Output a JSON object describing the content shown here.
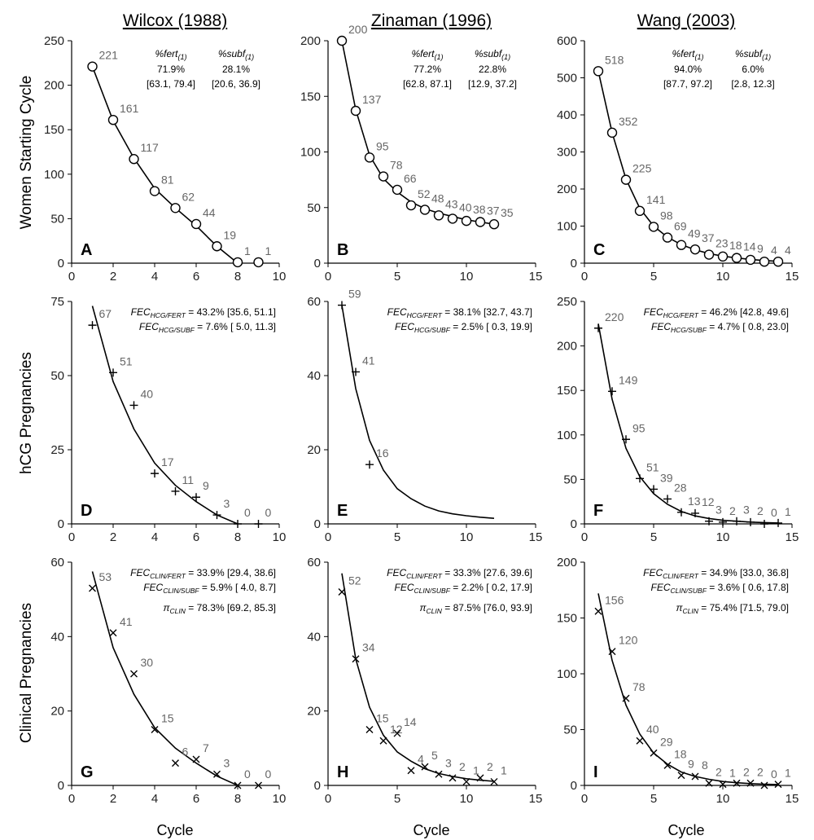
{
  "column_titles": [
    "Wilcox (1988)",
    "Zinaman (1996)",
    "Wang (2003)"
  ],
  "row_labels": [
    "Women Starting Cycle",
    "hCG Pregnancies",
    "Clinical Pregnancies"
  ],
  "x_axis_label": "Cycle",
  "chart_data": [
    {
      "id": "A",
      "type": "scatter",
      "marker": "circle",
      "row": 0,
      "col": 0,
      "xlim": [
        0,
        10
      ],
      "ylim": [
        0,
        250
      ],
      "xticks": [
        0,
        2,
        4,
        6,
        8,
        10
      ],
      "yticks": [
        0,
        50,
        100,
        150,
        200,
        250
      ],
      "x": [
        1,
        2,
        3,
        4,
        5,
        6,
        7,
        8,
        9
      ],
      "y": [
        221,
        161,
        117,
        81,
        62,
        44,
        19,
        1,
        1
      ],
      "labels": [
        "221",
        "161",
        "117",
        "81",
        "62",
        "44",
        "19",
        "1",
        "1"
      ],
      "fit": {
        "x": [
          1,
          2,
          3,
          4,
          5,
          6,
          7,
          8
        ],
        "y": [
          221,
          160,
          118,
          84,
          62,
          42,
          19,
          0
        ]
      },
      "stats": [
        [
          "%fert(1)",
          "%subf(1)"
        ],
        [
          "71.9%",
          "28.1%"
        ],
        [
          "[63.1, 79.4]",
          "[20.6, 36.9]"
        ]
      ]
    },
    {
      "id": "B",
      "type": "scatter",
      "marker": "circle",
      "row": 0,
      "col": 1,
      "xlim": [
        0,
        15
      ],
      "ylim": [
        0,
        200
      ],
      "xticks": [
        0,
        5,
        10,
        15
      ],
      "yticks": [
        0,
        50,
        100,
        150,
        200
      ],
      "x": [
        1,
        2,
        3,
        4,
        5,
        6,
        7,
        8,
        9,
        10,
        11,
        12
      ],
      "y": [
        200,
        137,
        95,
        78,
        66,
        52,
        48,
        43,
        40,
        38,
        37,
        35
      ],
      "labels": [
        "200",
        "137",
        "95",
        "78",
        "66",
        "52",
        "48",
        "43",
        "40",
        "38",
        "37",
        "35"
      ],
      "fit": {
        "x": [
          1,
          2,
          3,
          4,
          5,
          6,
          7,
          8,
          9,
          10,
          11,
          12
        ],
        "y": [
          200,
          138,
          97,
          76,
          64,
          55,
          49,
          45,
          42,
          39,
          37,
          35
        ]
      },
      "stats": [
        [
          "%fert(1)",
          "%subf(1)"
        ],
        [
          "77.2%",
          "22.8%"
        ],
        [
          "[62.8, 87.1]",
          "[12.9, 37.2]"
        ]
      ]
    },
    {
      "id": "C",
      "type": "scatter",
      "marker": "circle",
      "row": 0,
      "col": 2,
      "xlim": [
        0,
        15
      ],
      "ylim": [
        0,
        600
      ],
      "xticks": [
        0,
        5,
        10,
        15
      ],
      "yticks": [
        0,
        100,
        200,
        300,
        400,
        500,
        600
      ],
      "x": [
        1,
        2,
        3,
        4,
        5,
        6,
        7,
        8,
        9,
        10,
        11,
        12,
        13,
        14
      ],
      "y": [
        518,
        352,
        225,
        141,
        98,
        69,
        49,
        37,
        23,
        18,
        14,
        9,
        4,
        4
      ],
      "labels": [
        "518",
        "352",
        "225",
        "141",
        "98",
        "69",
        "49",
        "37",
        "23",
        "18",
        "14",
        "9",
        "4",
        "4"
      ],
      "fit": {
        "x": [
          1,
          2,
          3,
          4,
          5,
          6,
          7,
          8,
          9,
          10,
          11,
          12,
          13,
          14
        ],
        "y": [
          518,
          352,
          227,
          148,
          100,
          70,
          50,
          36,
          26,
          19,
          14,
          10,
          7,
          5
        ]
      },
      "stats": [
        [
          "%fert(1)",
          "%subf(1)"
        ],
        [
          "94.0%",
          "6.0%"
        ],
        [
          "[87.7, 97.2]",
          "[2.8, 12.3]"
        ]
      ]
    },
    {
      "id": "D",
      "type": "scatter",
      "marker": "plus",
      "row": 1,
      "col": 0,
      "xlim": [
        0,
        10
      ],
      "ylim": [
        0,
        75
      ],
      "xticks": [
        0,
        2,
        4,
        6,
        8,
        10
      ],
      "yticks": [
        0,
        25,
        50,
        75
      ],
      "x": [
        1,
        2,
        3,
        4,
        5,
        6,
        7,
        8,
        9
      ],
      "y": [
        67,
        51,
        40,
        17,
        11,
        9,
        3,
        0,
        0
      ],
      "labels": [
        "67",
        "51",
        "40",
        "17",
        "11",
        "9",
        "3",
        "0",
        "0"
      ],
      "fit": {
        "x": [
          1,
          2,
          3,
          4,
          5,
          6,
          7,
          8
        ],
        "y": [
          73.5,
          48,
          32,
          20.5,
          13,
          7.5,
          3,
          0
        ]
      },
      "stats": [
        [
          "FEC",
          "HCG/FERT",
          " = 43.2% [35.6, 51.1]"
        ],
        [
          "FEC",
          "HCG/SUBF",
          " =  7.6% [ 5.0, 11.3]"
        ]
      ]
    },
    {
      "id": "E",
      "type": "scatter",
      "marker": "plus",
      "row": 1,
      "col": 1,
      "xlim": [
        0,
        15
      ],
      "ylim": [
        0,
        60
      ],
      "xticks": [
        0,
        5,
        10,
        15
      ],
      "yticks": [
        0,
        20,
        40,
        60
      ],
      "x": [
        1,
        2,
        3
      ],
      "y": [
        59,
        41,
        16
      ],
      "labels": [
        "59",
        "41",
        "16"
      ],
      "fit": {
        "x": [
          1,
          2,
          3,
          4,
          5,
          6,
          7,
          8,
          9,
          10,
          11,
          12
        ],
        "y": [
          59,
          36.5,
          22.5,
          14.5,
          9.5,
          6.8,
          4.8,
          3.5,
          2.7,
          2.2,
          1.8,
          1.5
        ]
      },
      "stats": [
        [
          "FEC",
          "HCG/FERT",
          " = 38.1% [32.7, 43.7]"
        ],
        [
          "FEC",
          "HCG/SUBF",
          " =  2.5% [ 0.3, 19.9]"
        ]
      ]
    },
    {
      "id": "F",
      "type": "scatter",
      "marker": "plus",
      "row": 1,
      "col": 2,
      "xlim": [
        0,
        15
      ],
      "ylim": [
        0,
        250
      ],
      "xticks": [
        0,
        5,
        10,
        15
      ],
      "yticks": [
        0,
        50,
        100,
        150,
        200,
        250
      ],
      "x": [
        1,
        2,
        3,
        4,
        5,
        6,
        7,
        8,
        9,
        10,
        11,
        12,
        13,
        14
      ],
      "y": [
        220,
        149,
        95,
        51,
        39,
        28,
        13,
        12,
        3,
        2,
        3,
        2,
        0,
        1
      ],
      "labels": [
        "220",
        "149",
        "95",
        "51",
        "39",
        "28",
        "13",
        "12",
        "3",
        "2",
        "3",
        "2",
        "0",
        "1"
      ],
      "fit": {
        "x": [
          1,
          2,
          3,
          4,
          5,
          6,
          7,
          8,
          9,
          10,
          11,
          12,
          13,
          14
        ],
        "y": [
          225,
          140,
          85,
          53,
          34,
          22,
          14,
          9,
          6,
          4,
          3,
          2,
          1.5,
          1
        ]
      },
      "stats": [
        [
          "FEC",
          "HCG/FERT",
          " = 46.2% [42.8, 49.6]"
        ],
        [
          "FEC",
          "HCG/SUBF",
          " =  4.7% [ 0.8, 23.0]"
        ]
      ]
    },
    {
      "id": "G",
      "type": "scatter",
      "marker": "cross",
      "row": 2,
      "col": 0,
      "xlim": [
        0,
        10
      ],
      "ylim": [
        0,
        60
      ],
      "xticks": [
        0,
        2,
        4,
        6,
        8,
        10
      ],
      "yticks": [
        0,
        20,
        40,
        60
      ],
      "x": [
        1,
        2,
        3,
        4,
        5,
        6,
        7,
        8,
        9
      ],
      "y": [
        53,
        41,
        30,
        15,
        6,
        7,
        3,
        0,
        0
      ],
      "labels": [
        "53",
        "41",
        "30",
        "15",
        "6",
        "7",
        "3",
        "0",
        "0"
      ],
      "fit": {
        "x": [
          1,
          2,
          3,
          4,
          5,
          6,
          7,
          8
        ],
        "y": [
          57.5,
          37,
          24.5,
          15.5,
          10,
          6,
          2.5,
          0
        ]
      },
      "stats": [
        [
          "FEC",
          "CLIN/FERT",
          " = 33.9% [29.4, 38.6]"
        ],
        [
          "FEC",
          "CLIN/SUBF",
          " =  5.9% [ 4.0,  8.7]"
        ],
        [
          "π",
          "CLIN",
          " = 78.3% [69.2, 85.3]"
        ]
      ]
    },
    {
      "id": "H",
      "type": "scatter",
      "marker": "cross",
      "row": 2,
      "col": 1,
      "xlim": [
        0,
        15
      ],
      "ylim": [
        0,
        60
      ],
      "xticks": [
        0,
        5,
        10,
        15
      ],
      "yticks": [
        0,
        20,
        40,
        60
      ],
      "x": [
        1,
        2,
        3,
        4,
        5,
        6,
        7,
        8,
        9,
        10,
        11,
        12
      ],
      "y": [
        52,
        34,
        15,
        12,
        14,
        4,
        5,
        3,
        2,
        1,
        2,
        1
      ],
      "labels": [
        "52",
        "34",
        "15",
        "12",
        "14",
        "4",
        "5",
        "3",
        "2",
        "1",
        "2",
        "1"
      ],
      "fit": {
        "x": [
          1,
          2,
          3,
          4,
          5,
          6,
          7,
          8,
          9,
          10,
          11,
          12
        ],
        "y": [
          57,
          34,
          21,
          13.5,
          9,
          6.5,
          4.5,
          3.2,
          2.4,
          1.8,
          1.4,
          1.1
        ]
      },
      "stats": [
        [
          "FEC",
          "CLIN/FERT",
          " = 33.3% [27.6, 39.6]"
        ],
        [
          "FEC",
          "CLIN/SUBF",
          " =  2.2% [ 0.2, 17.9]"
        ],
        [
          "π",
          "CLIN",
          " = 87.5% [76.0, 93.9]"
        ]
      ]
    },
    {
      "id": "I",
      "type": "scatter",
      "marker": "cross",
      "row": 2,
      "col": 2,
      "xlim": [
        0,
        15
      ],
      "ylim": [
        0,
        200
      ],
      "xticks": [
        0,
        5,
        10,
        15
      ],
      "yticks": [
        0,
        50,
        100,
        150,
        200
      ],
      "x": [
        1,
        2,
        3,
        4,
        5,
        6,
        7,
        8,
        9,
        10,
        11,
        12,
        13,
        14
      ],
      "y": [
        156,
        120,
        78,
        40,
        29,
        18,
        9,
        8,
        2,
        1,
        2,
        2,
        0,
        1
      ],
      "labels": [
        "156",
        "120",
        "78",
        "40",
        "29",
        "18",
        "9",
        "8",
        "2",
        "1",
        "2",
        "2",
        "0",
        "1"
      ],
      "fit": {
        "x": [
          1,
          2,
          3,
          4,
          5,
          6,
          7,
          8,
          9,
          10,
          11,
          12,
          13,
          14
        ],
        "y": [
          172,
          112,
          72,
          46,
          29,
          19,
          12,
          8,
          5.5,
          3.5,
          2.4,
          1.6,
          1.1,
          0.8
        ]
      },
      "stats": [
        [
          "FEC",
          "CLIN/FERT",
          " = 34.9% [33.0, 36.8]"
        ],
        [
          "FEC",
          "CLIN/SUBF",
          " =  3.6% [ 0.6, 17.8]"
        ],
        [
          "π",
          "CLIN",
          " = 75.4% [71.5, 79.0]"
        ]
      ]
    }
  ]
}
